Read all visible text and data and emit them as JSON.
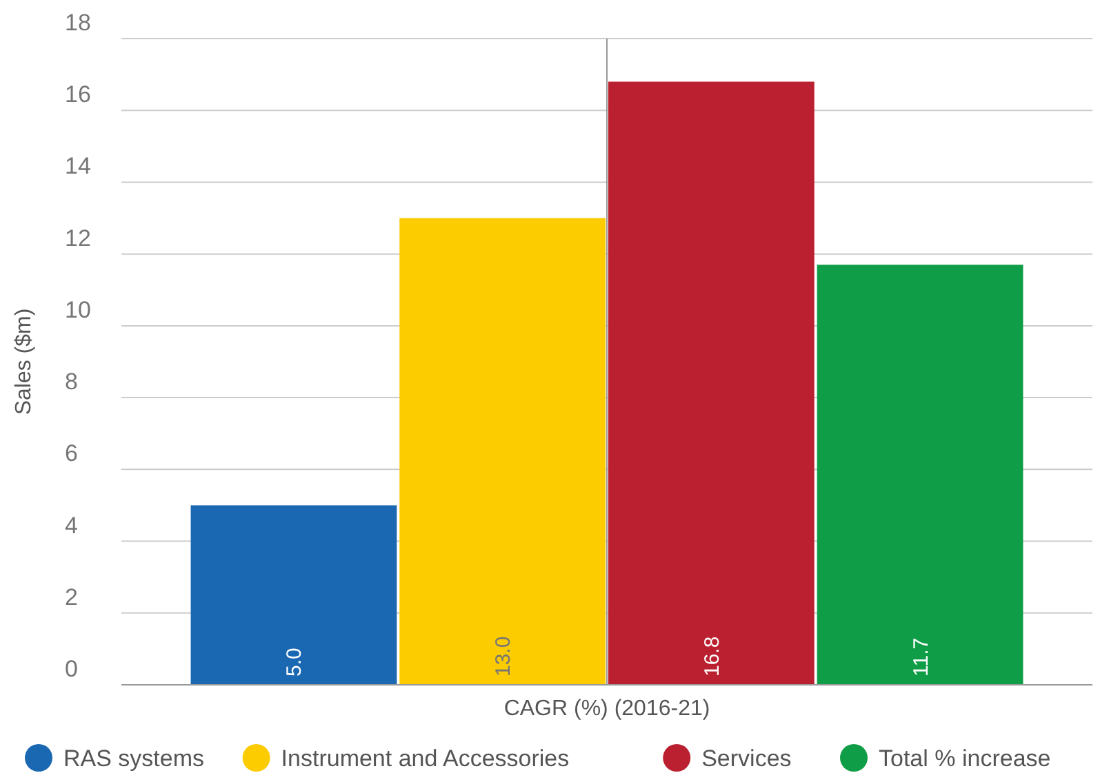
{
  "chart_data": {
    "type": "bar",
    "categories": [
      "CAGR (%) (2016-21)"
    ],
    "ylabel": "Sales ($m)",
    "ylim": [
      0,
      18
    ],
    "yticks": [
      0,
      2,
      4,
      6,
      8,
      10,
      12,
      14,
      16,
      18
    ],
    "grid": "y",
    "ref_lines": [
      {
        "axis": "x",
        "value": "CAGR (%) (2016-21)",
        "color": "#999999"
      }
    ],
    "legend": "bottom",
    "series": [
      {
        "name": "RAS systems",
        "color": "#1a67b2",
        "values": [
          5.0
        ],
        "value_labels": [
          "5.0"
        ]
      },
      {
        "name": "Instrument and Accessories",
        "color": "#fccb00",
        "values": [
          13.0
        ],
        "value_labels": [
          "13.0"
        ]
      },
      {
        "name": "Services",
        "color": "#bb2030",
        "values": [
          16.8
        ],
        "value_labels": [
          "16.8"
        ]
      },
      {
        "name": "Total % increase",
        "color": "#109d48",
        "values": [
          11.7
        ],
        "value_labels": [
          "11.7"
        ]
      }
    ]
  }
}
